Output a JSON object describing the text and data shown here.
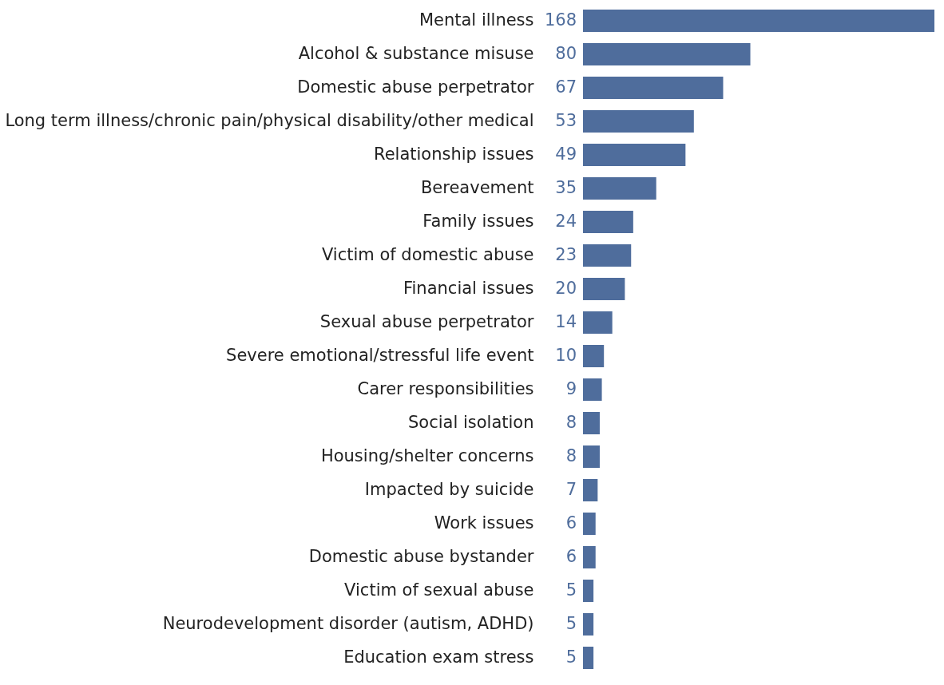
{
  "chart_data": {
    "type": "bar",
    "orientation": "horizontal",
    "data_labels": true,
    "categories": [
      "Mental illness",
      "Alcohol & substance misuse",
      "Domestic abuse perpetrator",
      "Long term illness/chronic pain/physical disability/other medical",
      "Relationship issues",
      "Bereavement",
      "Family issues",
      "Victim of domestic abuse",
      "Financial issues",
      "Sexual abuse perpetrator",
      "Severe emotional/stressful life event",
      "Carer responsibilities",
      "Social isolation",
      "Housing/shelter concerns",
      "Impacted by suicide",
      "Work issues",
      "Domestic abuse bystander",
      "Victim of sexual abuse",
      "Neurodevelopment disorder (autism, ADHD)",
      "Education exam stress"
    ],
    "series": [
      {
        "color": "#4f6d9c",
        "values": [
          168,
          80,
          67,
          53,
          49,
          35,
          24,
          23,
          20,
          14,
          10,
          9,
          8,
          8,
          7,
          6,
          6,
          5,
          5,
          5
        ]
      }
    ]
  }
}
